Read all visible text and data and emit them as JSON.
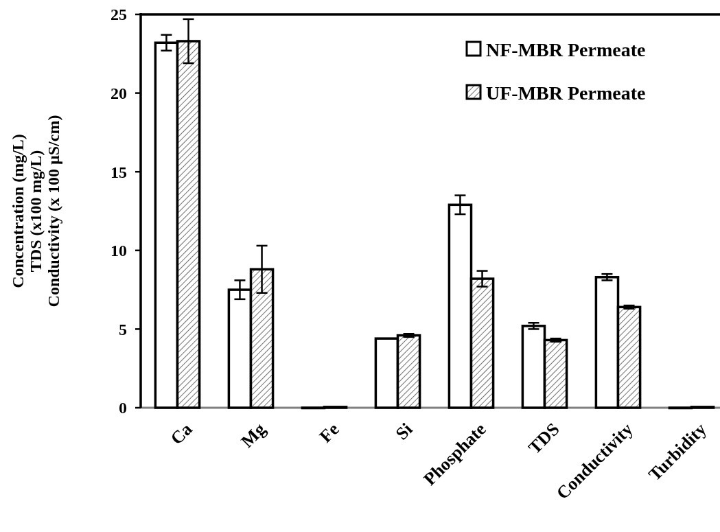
{
  "chart_data": {
    "type": "bar",
    "ylabel": "Concentration (mg/L)\nTDS (x100 mg/L)\nConductivity (x 100 µS/cm)",
    "categories": [
      "Ca",
      "Mg",
      "Fe",
      "Si",
      "Phosphate",
      "TDS",
      "Conductivity",
      "Turbidity"
    ],
    "series": [
      {
        "name": "NF-MBR Permeate",
        "color": "#ffffff",
        "values": [
          23.2,
          7.5,
          0,
          4.4,
          12.9,
          5.2,
          8.3,
          0
        ],
        "errors": [
          0.5,
          0.6,
          null,
          null,
          0.6,
          0.2,
          0.2,
          null
        ]
      },
      {
        "name": "UF-MBR Permeate",
        "color": "#000000",
        "values": [
          23.3,
          8.8,
          0.05,
          4.6,
          8.2,
          4.3,
          6.4,
          0.05
        ],
        "errors": [
          1.4,
          1.5,
          null,
          0.1,
          0.5,
          0.1,
          0.1,
          null
        ]
      }
    ],
    "ylim": [
      0,
      25
    ],
    "yticks": [
      0,
      5,
      10,
      15,
      20,
      25
    ],
    "legend": "top right"
  }
}
